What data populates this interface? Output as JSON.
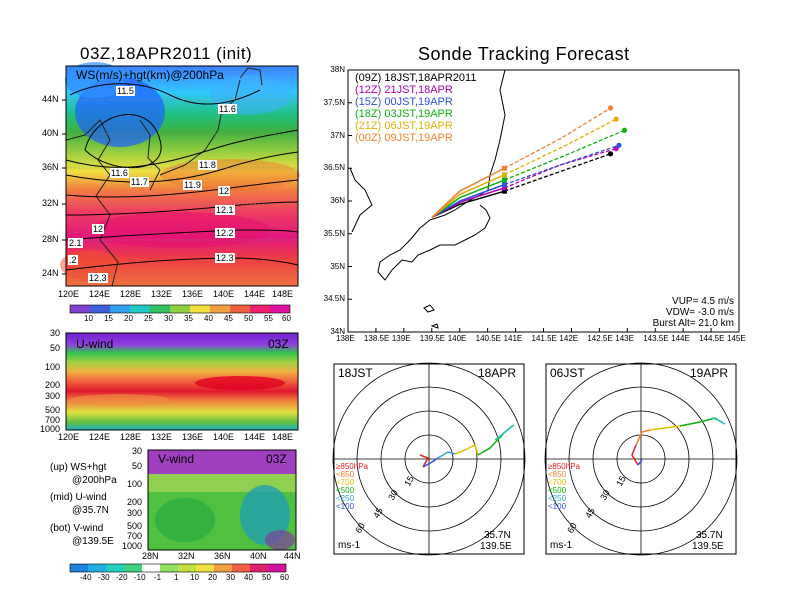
{
  "left_title": "03Z,18APR2011 (init)",
  "right_title": "Sonde Tracking Forecast",
  "map": {
    "label": "WS(m/s)+hgt(km)@200hPa",
    "lat_labels": [
      "44N",
      "40N",
      "36N",
      "32N",
      "28N",
      "24N"
    ],
    "lon_labels": [
      "120E",
      "124E",
      "128E",
      "132E",
      "136E",
      "140E",
      "144E",
      "148E"
    ],
    "contour_labels": [
      "11.5",
      "11.6",
      "11.8",
      "11.6",
      "11.7",
      "11.9",
      "12",
      "12.1",
      "12",
      "12.2",
      "12.3",
      "12.3",
      "2.1",
      ".2"
    ],
    "colorbar": [
      "10",
      "15",
      "20",
      "25",
      "30",
      "35",
      "40",
      "45",
      "50",
      "55",
      "60"
    ]
  },
  "uwind": {
    "label": "U-wind",
    "time": "03Z",
    "p_labels": [
      "30",
      "50",
      "100",
      "200",
      "300",
      "500",
      "700",
      "1000"
    ],
    "lon_labels": [
      "120E",
      "124E",
      "128E",
      "132E",
      "136E",
      "140E",
      "144E",
      "148E"
    ]
  },
  "vwind": {
    "label": "V-wind",
    "time": "03Z",
    "p_labels": [
      "30",
      "50",
      "100",
      "200",
      "300",
      "500",
      "700",
      "1000"
    ],
    "lat_labels": [
      "28N",
      "32N",
      "36N",
      "40N",
      "44N"
    ],
    "colorbar": [
      "-40",
      "-30",
      "-20",
      "-10",
      "-1",
      "1",
      "10",
      "20",
      "30",
      "40",
      "50",
      "60"
    ]
  },
  "legend_notes": [
    {
      "a": "(up) WS+hgt",
      "b": "@200hPa"
    },
    {
      "a": "(mid) U-wind",
      "b": "@35.7N"
    },
    {
      "a": "(bot) V-wind",
      "b": "@139.5E"
    }
  ],
  "track": {
    "lat_labels": [
      "38N",
      "37.5N",
      "37N",
      "36.5N",
      "36N",
      "35.5N",
      "35N",
      "34.5N",
      "34N"
    ],
    "lon_labels": [
      "138E",
      "138.5E",
      "139E",
      "139.5E",
      "140E",
      "140.5E",
      "141E",
      "141.5E",
      "142E",
      "142.5E",
      "143E",
      "143.5E",
      "144E",
      "144.5E",
      "145E"
    ],
    "launches": [
      {
        "text": "(09Z) 18JST,18APR2011",
        "color": "#000000"
      },
      {
        "text": "(12Z) 21JST,18APR",
        "color": "#b000b0"
      },
      {
        "text": "(15Z) 00JST,19APR",
        "color": "#3050e0"
      },
      {
        "text": "(18Z) 03JST,19APR",
        "color": "#10b010"
      },
      {
        "text": "(21Z) 06JST,19APR",
        "color": "#e0b000"
      },
      {
        "text": "(00Z) 09JST,19APR",
        "color": "#f08030"
      }
    ],
    "params": [
      "VUP= 4.5 m/s",
      "VDW= -3.0 m/s",
      "Burst Alt= 21.0 km"
    ]
  },
  "hodo_left": {
    "time": "18JST",
    "date": "18APR",
    "rings": [
      "15",
      "30",
      "45",
      "60"
    ],
    "levels": [
      "≥850hPa",
      "<850",
      "<700",
      "<500",
      "<250",
      "<100"
    ],
    "level_colors": [
      "#e02020",
      "#f08030",
      "#e0c000",
      "#10b010",
      "#30a0e0",
      "#3050e0"
    ],
    "unit": "ms-1",
    "lat": "35.7N",
    "lon": "139.5E"
  },
  "hodo_right": {
    "time": "06JST",
    "date": "19APR",
    "rings": [
      "15",
      "30",
      "45",
      "60"
    ],
    "levels": [
      "≥850hPa",
      "<850",
      "<700",
      "<500",
      "<250",
      "<100"
    ],
    "level_colors": [
      "#e02020",
      "#f08030",
      "#e0c000",
      "#10b010",
      "#30a0e0",
      "#3050e0"
    ],
    "unit": "ms-1",
    "lat": "35.7N",
    "lon": "139.5E"
  },
  "chart_data": [
    {
      "type": "heatmap",
      "title": "03Z,18APR2011 (init)",
      "variable": "WS(m/s)+hgt(km)@200hPa",
      "xrange": [
        "120E",
        "150E"
      ],
      "yrange": [
        "22N",
        "48N"
      ],
      "colorbar": [
        10,
        15,
        20,
        25,
        30,
        35,
        40,
        45,
        50,
        55,
        60
      ],
      "contour_labels": [
        11.5,
        11.6,
        11.8,
        11.6,
        11.7,
        11.9,
        12,
        12.1,
        12,
        12.2,
        12.3,
        12.3
      ]
    },
    {
      "type": "heatmap",
      "title": "U-wind",
      "time": "03Z",
      "y_pressure_hPa": [
        30,
        50,
        100,
        200,
        300,
        500,
        700,
        1000
      ],
      "xrange": [
        "120E",
        "150E"
      ]
    },
    {
      "type": "heatmap",
      "title": "V-wind",
      "time": "03Z",
      "y_pressure_hPa": [
        30,
        50,
        100,
        200,
        300,
        500,
        700,
        1000
      ],
      "xrange": [
        "28N",
        "44N"
      ],
      "colorbar": [
        -40,
        -30,
        -20,
        -10,
        -1,
        1,
        10,
        20,
        30,
        40,
        50,
        60
      ]
    },
    {
      "type": "line",
      "title": "Sonde Tracking Forecast",
      "xlim": [
        138,
        145
      ],
      "ylim": [
        34,
        38
      ],
      "series": [
        {
          "name": "(09Z) 18JST,18APR2011",
          "lon": [
            139.5,
            140.0,
            140.8,
            141.8,
            142.7
          ],
          "lat": [
            35.75,
            35.95,
            36.15,
            36.45,
            36.72
          ]
        },
        {
          "name": "(12Z) 21JST,18APR",
          "lon": [
            139.5,
            140.0,
            140.8,
            141.8,
            142.8
          ],
          "lat": [
            35.75,
            35.98,
            36.2,
            36.55,
            36.8
          ]
        },
        {
          "name": "(15Z) 00JST,19APR",
          "lon": [
            139.5,
            140.0,
            140.8,
            141.8,
            142.85
          ],
          "lat": [
            35.75,
            36.0,
            36.25,
            36.55,
            36.85
          ]
        },
        {
          "name": "(18Z) 03JST,19APR",
          "lon": [
            139.5,
            140.0,
            140.8,
            141.9,
            142.95
          ],
          "lat": [
            35.75,
            36.05,
            36.32,
            36.7,
            37.08
          ]
        },
        {
          "name": "(21Z) 06JST,19APR",
          "lon": [
            139.5,
            140.0,
            140.8,
            141.9,
            142.8
          ],
          "lat": [
            35.75,
            36.1,
            36.4,
            36.85,
            37.25
          ]
        },
        {
          "name": "(00Z) 09JST,19APR",
          "lon": [
            139.5,
            140.0,
            140.8,
            141.8,
            142.7
          ],
          "lat": [
            35.75,
            36.15,
            36.5,
            36.95,
            37.42
          ]
        }
      ]
    }
  ]
}
